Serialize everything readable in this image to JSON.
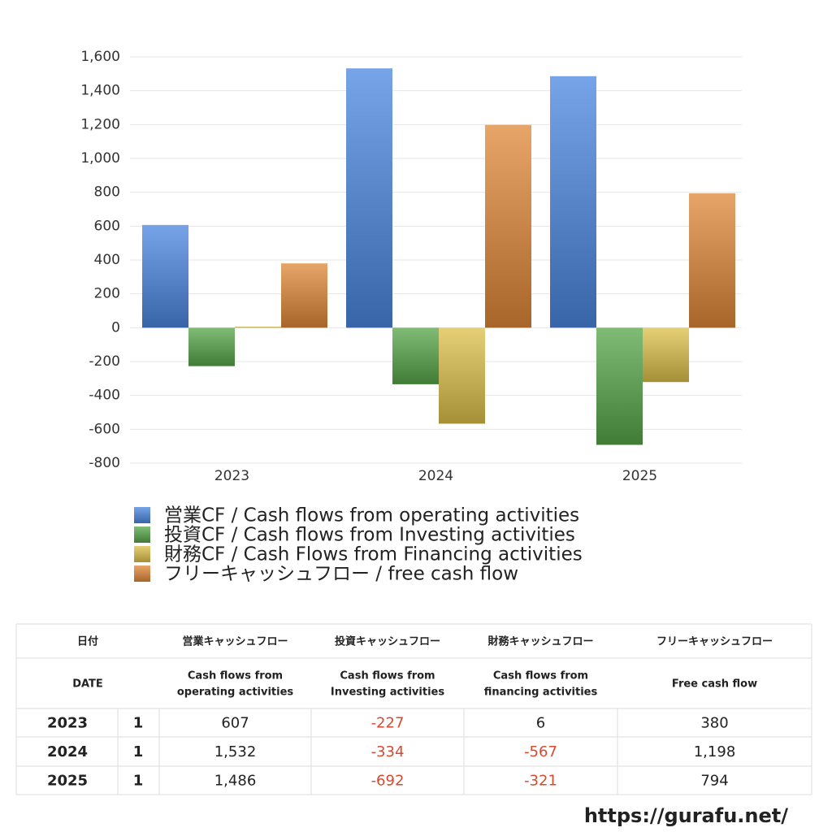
{
  "chart_data": {
    "type": "bar",
    "categories": [
      "2023",
      "2024",
      "2025"
    ],
    "series": [
      {
        "name": "営業CF / Cash flows from operating activities",
        "color": "#4a86e0",
        "values": [
          607,
          1532,
          1486
        ]
      },
      {
        "name": "投資CF / Cash flows from Investing activities",
        "color": "#56a548",
        "values": [
          -227,
          -334,
          -692
        ]
      },
      {
        "name": "財務CF / Cash Flows from Financing activities",
        "color": "#dcc04a",
        "values": [
          6,
          -567,
          -321
        ]
      },
      {
        "name": "フリーキャッシュフロー / free cash flow",
        "color": "#e08738",
        "values": [
          380,
          1198,
          794
        ]
      }
    ],
    "ylim": [
      -800,
      1600
    ],
    "yticks": [
      -800,
      -600,
      -400,
      -200,
      0,
      200,
      400,
      600,
      800,
      {
        "value": 1000,
        "label": "1,000"
      },
      {
        "value": 1200,
        "label": "1,200"
      },
      {
        "value": 1400,
        "label": "1,400"
      },
      {
        "value": 1600,
        "label": "1,600"
      }
    ],
    "grid": true,
    "legend": "bottom"
  },
  "table": {
    "header": [
      "日付",
      "営業キャッシュフロー",
      "投資キャッシュフロー",
      "財務キャッシュフロー",
      "フリーキャッシュフロー"
    ],
    "header_en": [
      [
        "DATE"
      ],
      [
        "Cash flows from",
        "operating activities"
      ],
      [
        "Cash flows from",
        "Investing activities"
      ],
      [
        "Cash flows from",
        "financing activities"
      ],
      [
        "Free cash flow"
      ]
    ],
    "rows": [
      [
        "2023",
        "1",
        "607",
        "-227",
        "6",
        "380"
      ],
      [
        "2024",
        "1",
        "1,532",
        "-334",
        "-567",
        "1,198"
      ],
      [
        "2025",
        "1",
        "1,486",
        "-692",
        "-321",
        "794"
      ]
    ]
  },
  "footer": "https://gurafu.net/"
}
